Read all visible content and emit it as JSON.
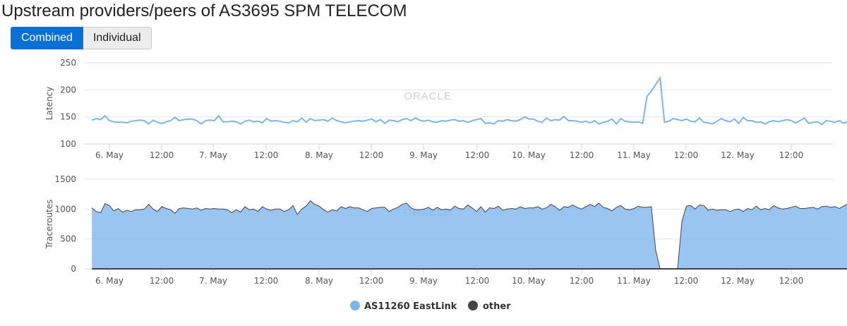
{
  "page": {
    "title": "Upstream providers/peers of AS3695 SPM TELECOM"
  },
  "toggle": {
    "combined_label": "Combined",
    "individual_label": "Individual"
  },
  "watermark": "ORACLE",
  "colors": {
    "accent": "#0a70d6",
    "eastlink": "#7cb5ec",
    "other": "#434348"
  },
  "chart_data": [
    {
      "type": "line",
      "ylabel": "Latency",
      "ylim": [
        100,
        250
      ],
      "yticks": [
        100,
        150,
        200,
        250
      ],
      "xticks": [
        "6. May",
        "12:00",
        "7. May",
        "12:00",
        "8. May",
        "12:00",
        "9. May",
        "12:00",
        "10. May",
        "12:00",
        "11. May",
        "12:00",
        "12. May",
        "12:00"
      ],
      "grid": true,
      "series": [
        {
          "name": "AS11260 EastLink",
          "x_start_hours": -4,
          "step_hours": 1,
          "values": [
            144,
            147,
            145,
            152,
            143,
            141,
            140,
            140,
            139,
            142,
            143,
            144,
            143,
            137,
            144,
            140,
            138,
            141,
            143,
            149,
            143,
            145,
            146,
            146,
            143,
            137,
            143,
            144,
            143,
            152,
            141,
            141,
            142,
            141,
            137,
            142,
            144,
            141,
            142,
            139,
            147,
            142,
            143,
            142,
            140,
            139,
            143,
            141,
            148,
            140,
            147,
            143,
            144,
            145,
            142,
            148,
            143,
            141,
            139,
            141,
            142,
            143,
            142,
            144,
            146,
            141,
            145,
            138,
            144,
            143,
            141,
            145,
            147,
            143,
            148,
            144,
            142,
            144,
            141,
            140,
            143,
            142,
            144,
            145,
            142,
            143,
            140,
            143,
            145,
            147,
            138,
            139,
            137,
            143,
            142,
            145,
            143,
            142,
            145,
            150,
            146,
            146,
            142,
            140,
            148,
            143,
            145,
            144,
            151,
            143,
            143,
            142,
            140,
            142,
            139,
            143,
            137,
            140,
            142,
            146,
            137,
            147,
            142,
            141,
            140,
            141,
            138,
            188,
            198,
            210,
            222,
            140,
            142,
            147,
            145,
            143,
            146,
            142,
            141,
            148,
            140,
            139,
            137,
            142,
            147,
            143,
            141,
            146,
            138,
            149,
            143,
            143,
            140,
            141,
            137,
            141,
            143,
            141,
            143,
            145,
            143,
            139,
            143,
            148,
            138,
            140,
            141,
            136,
            143,
            142,
            140,
            143,
            138,
            142,
            143,
            142,
            139,
            140,
            141,
            147,
            144,
            141,
            142,
            143,
            145
          ]
        }
      ]
    },
    {
      "type": "area",
      "ylabel": "Traceroutes",
      "ylim": [
        0,
        1500
      ],
      "yticks": [
        0,
        500,
        1000,
        1500
      ],
      "xticks": [
        "6. May",
        "12:00",
        "7. May",
        "12:00",
        "8. May",
        "12:00",
        "9. May",
        "12:00",
        "10. May",
        "12:00",
        "11. May",
        "12:00",
        "12. May",
        "12:00"
      ],
      "grid": true,
      "legend": "bottom-center",
      "series": [
        {
          "name": "AS11260 EastLink",
          "x_start_hours": -4,
          "step_hours": 1,
          "values": [
            1020,
            960,
            940,
            1090,
            1060,
            970,
            1010,
            950,
            980,
            960,
            990,
            990,
            1000,
            1080,
            1000,
            960,
            1040,
            1010,
            990,
            930,
            1010,
            1020,
            1010,
            1000,
            1020,
            980,
            1010,
            1000,
            1010,
            1000,
            1000,
            990,
            940,
            990,
            950,
            1040,
            990,
            1000,
            960,
            1040,
            1000,
            980,
            1000,
            1000,
            960,
            990,
            1060,
            910,
            1000,
            1050,
            1140,
            1080,
            1050,
            990,
            950,
            990,
            970,
            1040,
            1010,
            1040,
            1020,
            1020,
            990,
            960,
            1010,
            1020,
            1030,
            1030,
            960,
            1000,
            1030,
            1080,
            1100,
            1020,
            990,
            990,
            1000,
            1030,
            980,
            1030,
            990,
            1000,
            980,
            1050,
            1010,
            1000,
            1070,
            1020,
            960,
            1040,
            950,
            1020,
            1010,
            1050,
            980,
            1000,
            1010,
            1000,
            1040,
            1010,
            1020,
            1020,
            1040,
            1000,
            1020,
            1080,
            1040,
            980,
            1040,
            1030,
            1070,
            1030,
            1000,
            1040,
            1080,
            1040,
            1100,
            1030,
            1010,
            970,
            1030,
            1060,
            1000,
            990,
            1010,
            1050,
            1030,
            1030,
            1040,
            310,
            0,
            0,
            0,
            0,
            0,
            800,
            1050,
            1060,
            1000,
            1070,
            1060,
            980,
            1000,
            980,
            990,
            990,
            960,
            990,
            1000,
            960,
            1010,
            990,
            1050,
            990,
            1010,
            990,
            1060,
            1020,
            1000,
            1010,
            1030,
            1050,
            1010,
            1010,
            1020,
            1030,
            1000,
            1040,
            1050,
            1030,
            1040,
            1010,
            1050,
            1090,
            1010,
            960,
            930,
            950,
            1000,
            1010,
            1030,
            1000,
            1050,
            1040,
            1010,
            1050,
            1050,
            1020,
            1080,
            1020,
            970,
            1080,
            1030
          ]
        },
        {
          "name": "other",
          "values_constant": 0
        }
      ]
    }
  ]
}
